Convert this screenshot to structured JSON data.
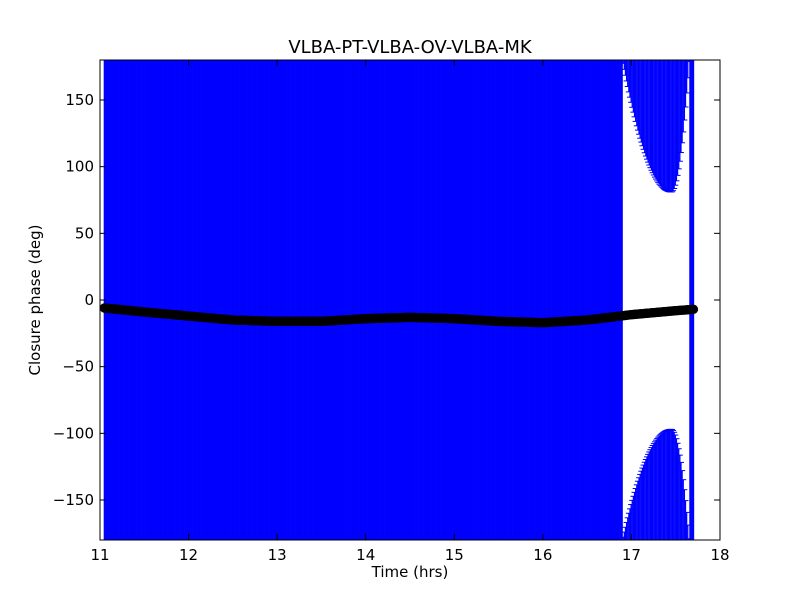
{
  "chart_data": {
    "type": "scatter",
    "title": "VLBA-PT-VLBA-OV-VLBA-MK",
    "xlabel": "Time (hrs)",
    "ylabel": "Closure phase (deg)",
    "xlim": [
      11,
      18
    ],
    "ylim": [
      -180,
      180
    ],
    "xticks": [
      11,
      12,
      13,
      14,
      15,
      16,
      17,
      18
    ],
    "xtick_labels": [
      "11",
      "12",
      "13",
      "14",
      "15",
      "16",
      "17",
      "18"
    ],
    "yticks": [
      -150,
      -100,
      -50,
      0,
      50,
      100,
      150
    ],
    "ytick_labels": [
      "−150",
      "−100",
      "−50",
      "0",
      "50",
      "100",
      "150"
    ],
    "grid": false,
    "legend": "none",
    "series": [
      {
        "marker": "circle",
        "color": "#000000",
        "errorbar_color": "#0000ff",
        "x": [
          11.05,
          11.5,
          12.0,
          12.5,
          13.0,
          13.5,
          14.0,
          14.5,
          15.0,
          15.5,
          16.0,
          16.5,
          17.0,
          17.5,
          17.7
        ],
        "y": [
          -6,
          -9,
          -12,
          -15,
          -16,
          -16,
          -14,
          -13,
          -14,
          -16,
          -17,
          -15,
          -11,
          -8,
          -7
        ]
      }
    ],
    "errorbar_gap_region": {
      "x_start": 16.9,
      "x_min": 17.45,
      "x_end": 17.65,
      "upper_bound_at_min": 81,
      "lower_bound_at_min": -97
    }
  }
}
